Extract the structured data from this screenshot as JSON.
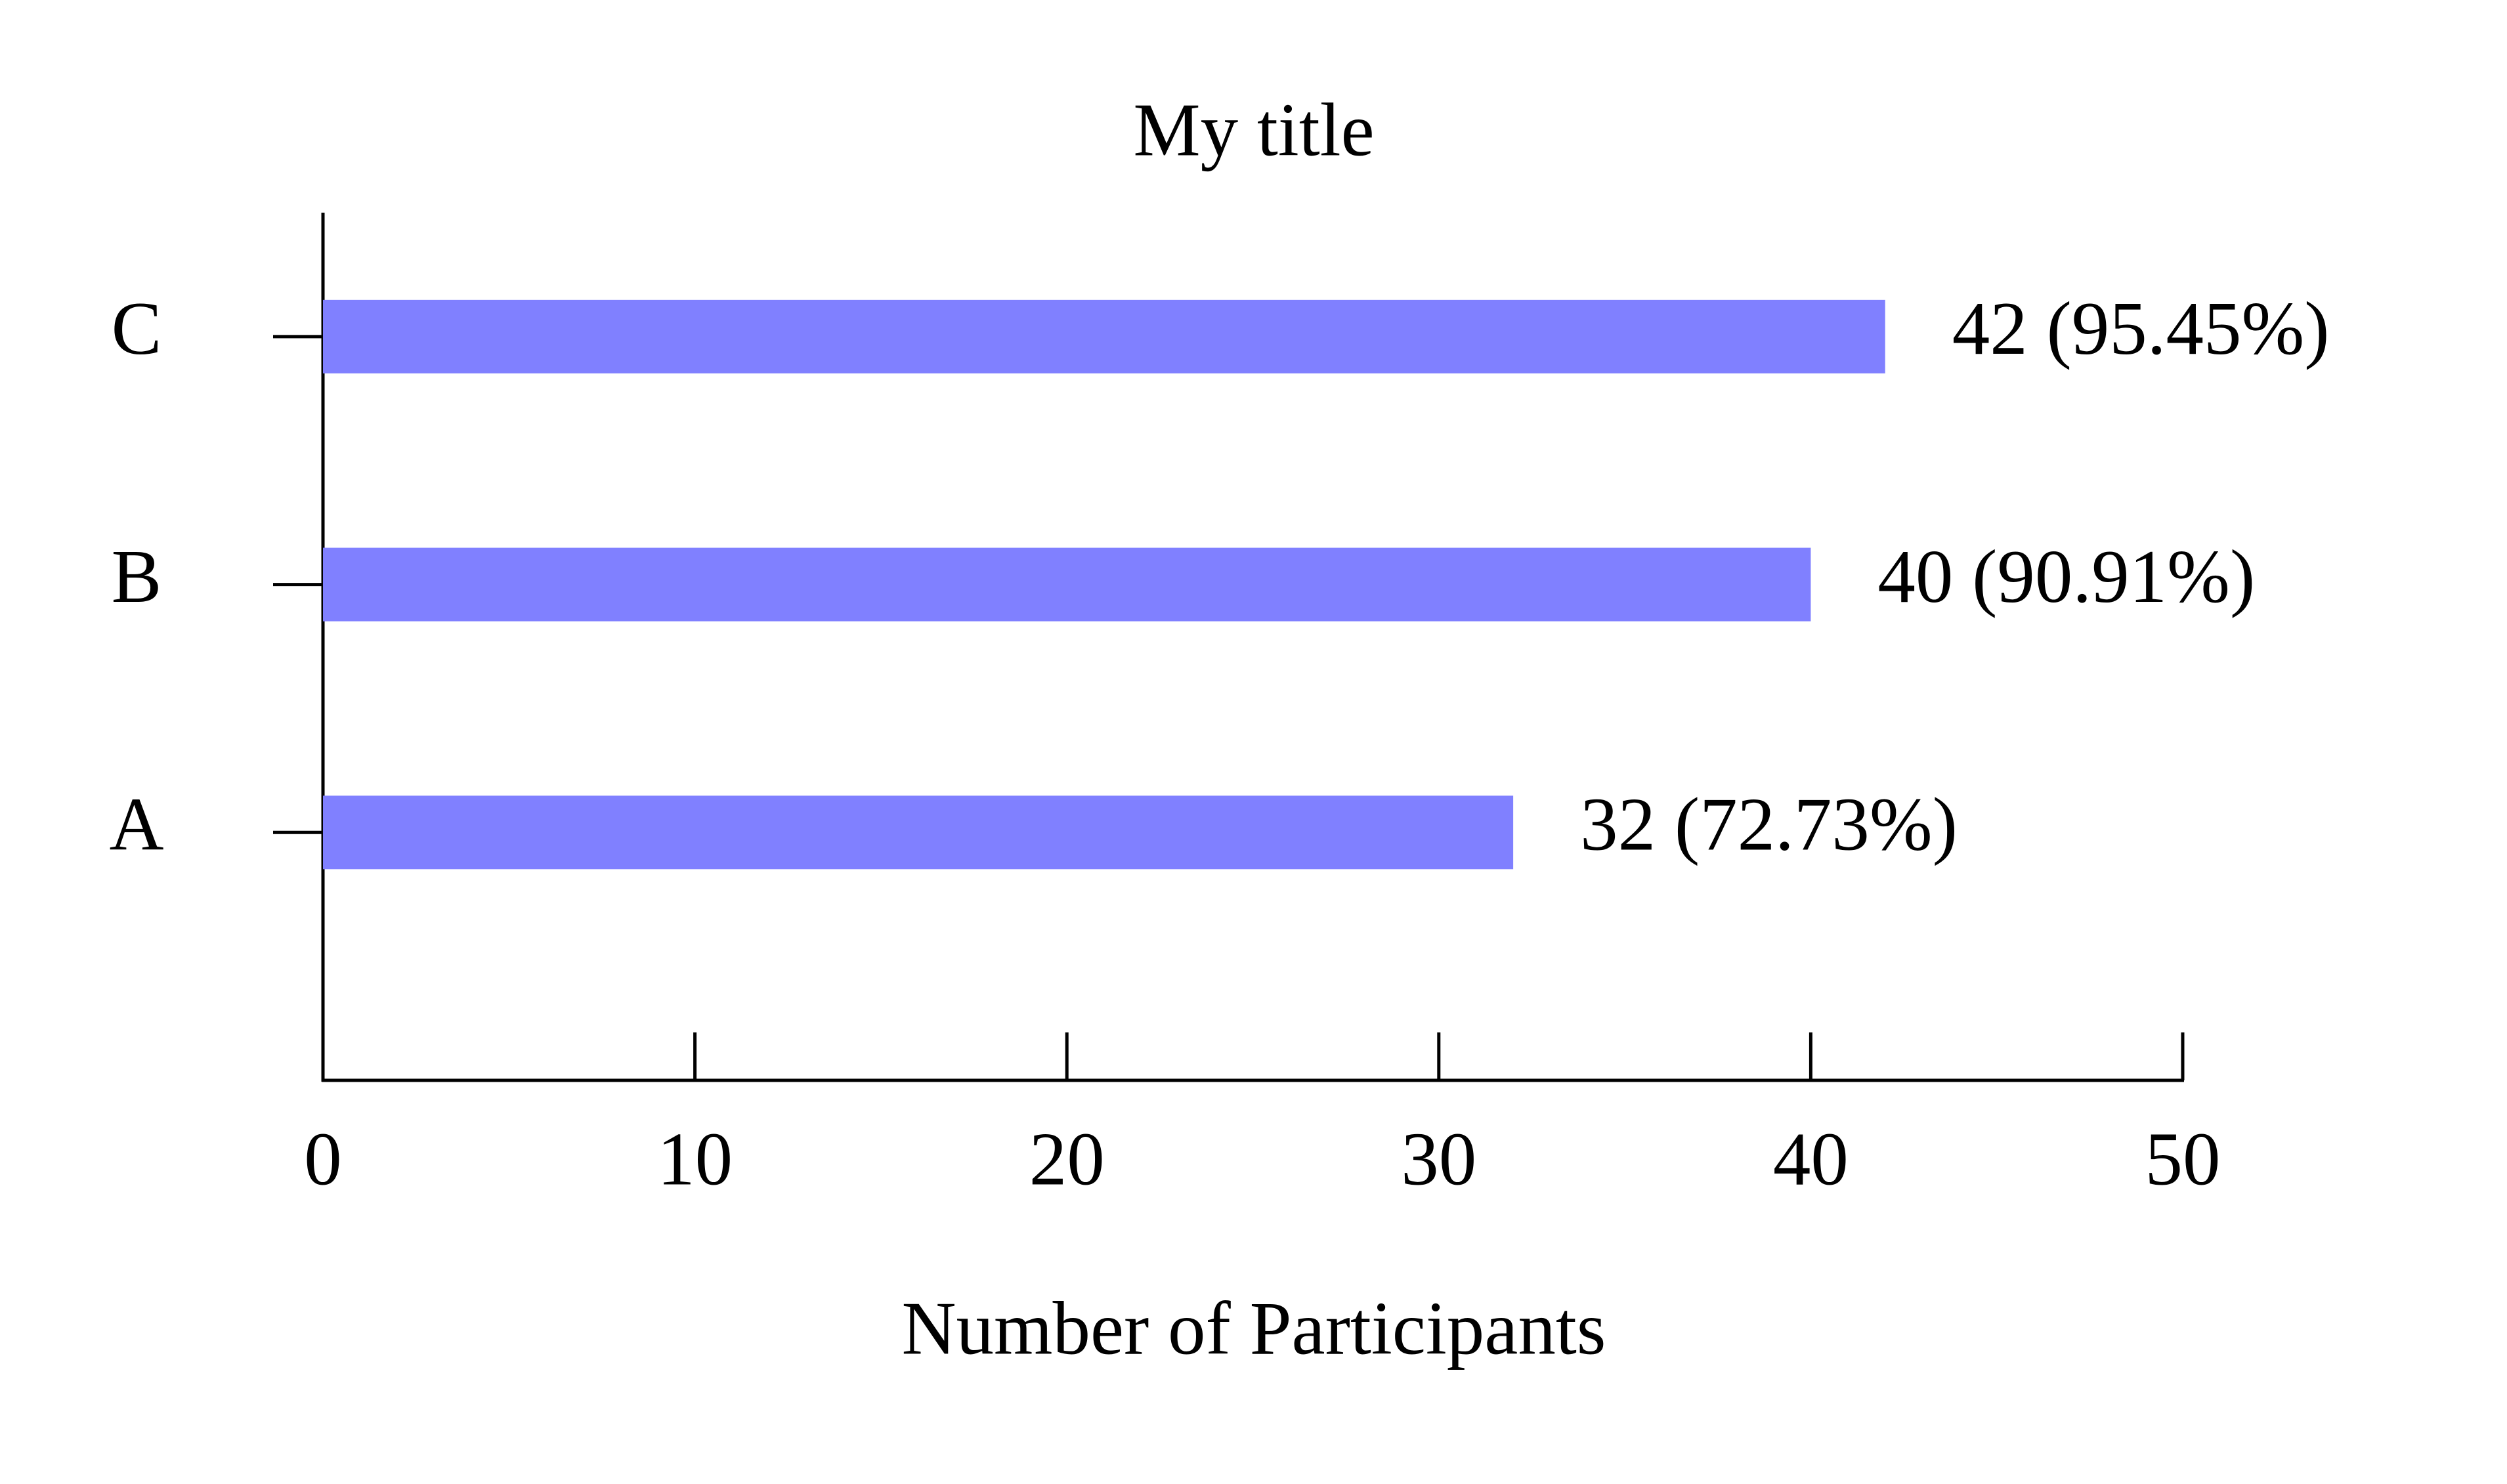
{
  "chart_data": {
    "type": "barh",
    "title": "My title",
    "xlabel": "Number of Participants",
    "categories": [
      "A",
      "B",
      "C"
    ],
    "values": [
      32,
      40,
      42
    ],
    "value_labels": [
      "32 (72.73%)",
      "40 (90.91%)",
      "42 (95.45%)"
    ],
    "color": "#8080ff",
    "label_color": "#0000ff",
    "xlim": [
      0,
      50
    ],
    "xticks": [
      0,
      10,
      20,
      30,
      40,
      50
    ]
  }
}
